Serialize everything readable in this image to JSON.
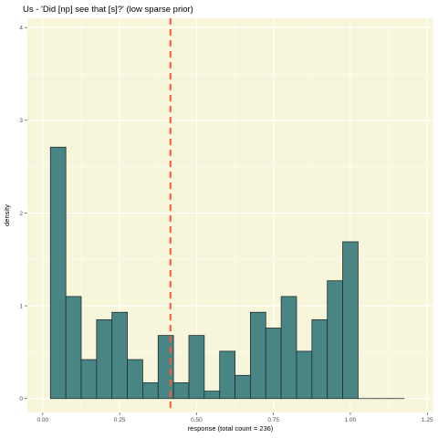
{
  "chart_data": {
    "type": "bar",
    "title": "Us - 'Did [np] see that [s]?' (low sparse prior)",
    "xlabel": "response (total count = 236)",
    "ylabel": "density",
    "xlim": [
      -0.05,
      1.27
    ],
    "ylim": [
      -0.15,
      4.1
    ],
    "x_ticks": [
      0.0,
      0.25,
      0.5,
      0.75,
      1.0,
      1.25
    ],
    "x_tick_labels": [
      "0.00",
      "0.25",
      "0.50",
      "0.75",
      "1.00",
      "1.25"
    ],
    "y_ticks": [
      0,
      1,
      2,
      3,
      4
    ],
    "y_tick_labels": [
      "0",
      "1",
      "2",
      "3",
      "4"
    ],
    "bin_width": 0.05,
    "bin_starts": [
      0.025,
      0.075,
      0.125,
      0.175,
      0.225,
      0.275,
      0.325,
      0.375,
      0.425,
      0.475,
      0.525,
      0.575,
      0.625,
      0.675,
      0.725,
      0.775,
      0.825,
      0.875,
      0.925,
      0.975,
      1.025,
      1.075,
      1.125
    ],
    "values": [
      2.71,
      1.1,
      0.42,
      0.85,
      0.93,
      0.42,
      0.17,
      0.68,
      0.17,
      0.68,
      0.08,
      0.51,
      0.25,
      0.93,
      0.76,
      1.1,
      0.51,
      0.85,
      1.27,
      1.69,
      0,
      0,
      0
    ],
    "vline": {
      "x": 0.415,
      "color": "#ff5733",
      "style": "dashed"
    },
    "colors": {
      "bar_fill": "#4a8585",
      "bar_stroke": "#1e2f2f",
      "panel_bg": "#f8f6da",
      "grid": "#ffffff"
    },
    "grid": true,
    "legend": "none"
  }
}
